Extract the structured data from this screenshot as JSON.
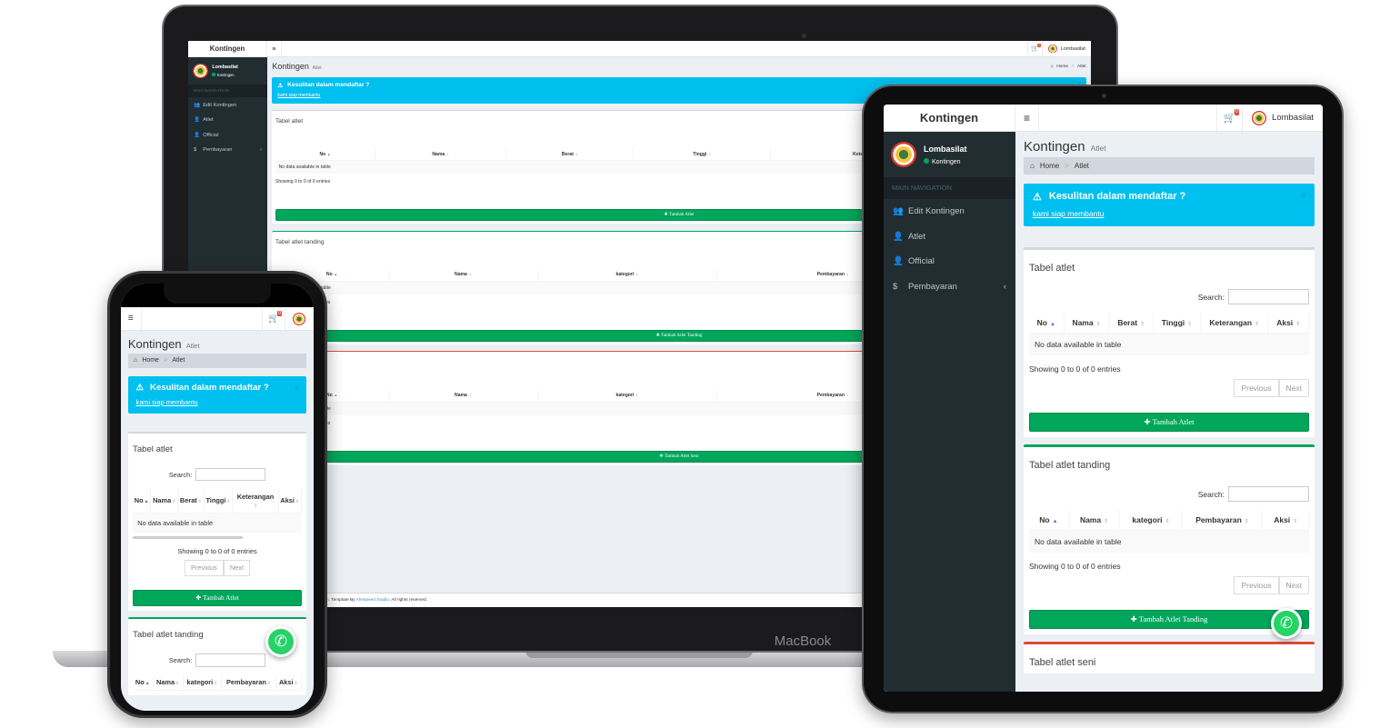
{
  "app": {
    "logo": "Kontingen",
    "cart_count": "0",
    "user_name": "Lombasilat",
    "user_status": "Kontingen",
    "nav_header": "MAIN NAVIGATION",
    "nav": [
      {
        "label": "Edit Kontingen",
        "icon": "users-icon",
        "glyph": "👥"
      },
      {
        "label": "Atlet",
        "icon": "user-icon",
        "glyph": "👤"
      },
      {
        "label": "Official",
        "icon": "user-icon",
        "glyph": "👤"
      },
      {
        "label": "Pembayaran",
        "icon": "dollar-icon",
        "glyph": "$",
        "chevron": "‹"
      }
    ],
    "page_title": "Kontingen",
    "page_subtitle": "Atlet",
    "breadcrumb": [
      "Home",
      "Atlet"
    ],
    "callout": {
      "title": "Kesulitan dalam mendaftar ?",
      "link": "kami siap membantu",
      "close": "×"
    },
    "search_label": "Search:",
    "empty": "No data available in table",
    "info": "Showing 0 to 0 of 0 entries",
    "prev": "Previous",
    "next": "Next",
    "tables": [
      {
        "title": "Tabel atlet",
        "columns": [
          "No",
          "Nama",
          "Berat",
          "Tinggi",
          "Keterangan",
          "Aksi"
        ],
        "button": "Tambah Atlet",
        "accent": "#d2d6de"
      },
      {
        "title": "Tabel atlet tanding",
        "columns": [
          "No",
          "Nama",
          "kategori",
          "Pembayaran",
          "Aksi"
        ],
        "button": "Tambah Atlet Tanding",
        "accent": "#00a65a"
      },
      {
        "title": "Tabel atlet seni",
        "columns": [
          "No",
          "Nama",
          "kategori",
          "Pembayaran",
          "Aksi"
        ],
        "button": "Tambah Atlet Seni",
        "accent": "#dd4b39"
      }
    ],
    "footer": {
      "prefix": "Program By: ",
      "site": "Lombasilat.com",
      "mid": ". Template By ",
      "studio": "Almsaeed Studio",
      "suffix": ". All rights reserved."
    }
  },
  "device": {
    "laptop_label": "MacBook"
  },
  "colors": {
    "sidebar": "#222d32",
    "callout": "#00c0ef",
    "button": "#00a65a",
    "content_bg": "#ecf0f5",
    "whatsapp": "#25d366"
  }
}
